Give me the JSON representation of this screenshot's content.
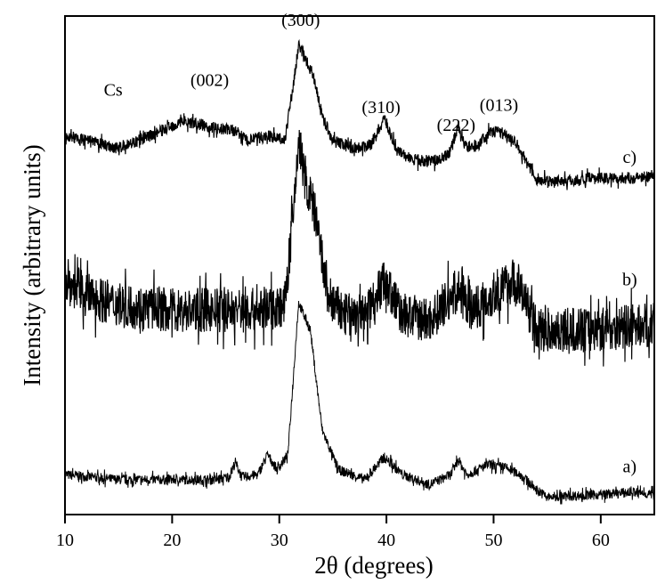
{
  "chart_data": {
    "type": "line",
    "xlabel": "2θ (degrees)",
    "ylabel": "Intensity (arbitrary units)",
    "xlim": [
      10,
      65
    ],
    "ylim": [
      0,
      100
    ],
    "xticks": [
      10,
      20,
      30,
      40,
      50,
      60
    ],
    "yticks": [],
    "grid": false,
    "legend": "none",
    "line_color": "#000000",
    "series": [
      {
        "name": "a)",
        "noise": 1.0,
        "x": [
          10,
          15,
          20,
          24,
          25.3,
          25.9,
          26.5,
          28,
          28.9,
          29.8,
          30.8,
          31.8,
          32.9,
          34,
          35.5,
          38,
          39.8,
          41.5,
          44,
          46,
          46.7,
          47.5,
          49.5,
          51,
          52.5,
          54,
          55,
          60,
          63,
          65
        ],
        "y": [
          8,
          7,
          7,
          7,
          7.5,
          10.5,
          7.5,
          8,
          12,
          9,
          12,
          42.5,
          37,
          17,
          9,
          7,
          11.5,
          8,
          6,
          8,
          11,
          8,
          10,
          9.5,
          8,
          5,
          3.5,
          4,
          4.5,
          4
        ]
      },
      {
        "name": "b)",
        "noise": 4.5,
        "x": [
          10,
          12,
          15,
          20,
          25,
          28,
          30.5,
          31.3,
          31.8,
          32.5,
          33.2,
          34.5,
          36,
          38,
          39.8,
          41.5,
          44,
          46.7,
          48,
          50,
          51.8,
          53,
          54,
          58,
          65
        ],
        "y": [
          47,
          44,
          42,
          41,
          41,
          41,
          42,
          60,
          75,
          66,
          62,
          44,
          40,
          40,
          47,
          40,
          39,
          45,
          41,
          44,
          47,
          43,
          37,
          37,
          38
        ]
      },
      {
        "name": "c)",
        "noise": 1.2,
        "x": [
          10,
          12,
          15,
          18,
          21,
          24,
          25.9,
          27,
          29,
          30.5,
          31.3,
          31.8,
          32.5,
          33.2,
          34,
          35,
          37,
          38.5,
          39.8,
          41,
          42.5,
          45,
          46,
          46.7,
          47.5,
          48.5,
          49.5,
          50.5,
          52,
          53,
          54,
          57,
          60,
          63,
          65
        ],
        "y": [
          76,
          75,
          73.5,
          76,
          79,
          77.5,
          77,
          75,
          76,
          75,
          86,
          94,
          91,
          88,
          80,
          75,
          73.5,
          74,
          79.5,
          73,
          71,
          71,
          73,
          78,
          73.5,
          74,
          76.5,
          77,
          75,
          71,
          67,
          67,
          67.5,
          67.5,
          68
        ]
      }
    ],
    "annotations": [
      {
        "text": "Cs",
        "x": 14.5,
        "y": 84
      },
      {
        "text": "(002)",
        "x": 23.5,
        "y": 86
      },
      {
        "text": "(300)",
        "x": 32,
        "y": 98
      },
      {
        "text": "(310)",
        "x": 39.5,
        "y": 80.5
      },
      {
        "text": "(222)",
        "x": 46.5,
        "y": 77
      },
      {
        "text": "(013)",
        "x": 50.5,
        "y": 81
      }
    ],
    "series_labels": [
      {
        "text": "c)",
        "x": 62.7,
        "y": 70.5
      },
      {
        "text": "b)",
        "x": 62.7,
        "y": 46
      },
      {
        "text": "a)",
        "x": 62.7,
        "y": 8.5
      }
    ]
  }
}
